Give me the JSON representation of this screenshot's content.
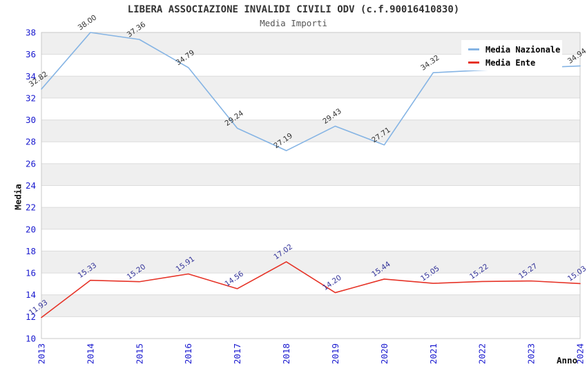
{
  "chart_data": {
    "type": "line",
    "title": "LIBERA ASSOCIAZIONE INVALIDI CIVILI ODV (c.f.90016410830)",
    "subtitle": "Media Importi",
    "xlabel": "Anno",
    "ylabel": "Media",
    "categories": [
      "2013",
      "2014",
      "2015",
      "2016",
      "2017",
      "2018",
      "2019",
      "2020",
      "2021",
      "2022",
      "2023",
      "2024"
    ],
    "ylim": [
      10,
      38
    ],
    "yticks": [
      "10",
      "12",
      "14",
      "16",
      "18",
      "20",
      "22",
      "24",
      "26",
      "28",
      "30",
      "32",
      "34",
      "36",
      "38"
    ],
    "grid": "horizontal alternating bands, gridline each 2 units",
    "legend_position": "top-right",
    "series": [
      {
        "name": "Media Nazionale",
        "color": "#85B4E4",
        "label_color": "#333333",
        "values": [
          32.82,
          38.0,
          37.36,
          34.79,
          29.24,
          27.19,
          29.43,
          27.71,
          34.32,
          34.55,
          34.75,
          34.94
        ],
        "labels": [
          "32.82",
          "38.00",
          "37.36",
          "34.79",
          "29.24",
          "27.19",
          "29.43",
          "27.71",
          "34.32",
          "",
          "",
          "34.94"
        ]
      },
      {
        "name": "Media Ente",
        "color": "#E63327",
        "label_color": "#333399",
        "values": [
          11.93,
          15.33,
          15.2,
          15.91,
          14.56,
          17.02,
          14.2,
          15.44,
          15.05,
          15.22,
          15.27,
          15.03
        ],
        "labels": [
          "11.93",
          "15.33",
          "15.20",
          "15.91",
          "14.56",
          "17.02",
          "14.20",
          "15.44",
          "15.05",
          "15.22",
          "15.27",
          "15.03"
        ]
      }
    ],
    "styles": {
      "tick_label_color": "#1A1ACF",
      "band_fill": "#EFEFEF",
      "grid_line_color": "#DCDCDC",
      "frame_color": "#C9C9C9",
      "title_color": "#333333",
      "subtitle_color": "#555555",
      "background": "#FFFFFF"
    }
  }
}
